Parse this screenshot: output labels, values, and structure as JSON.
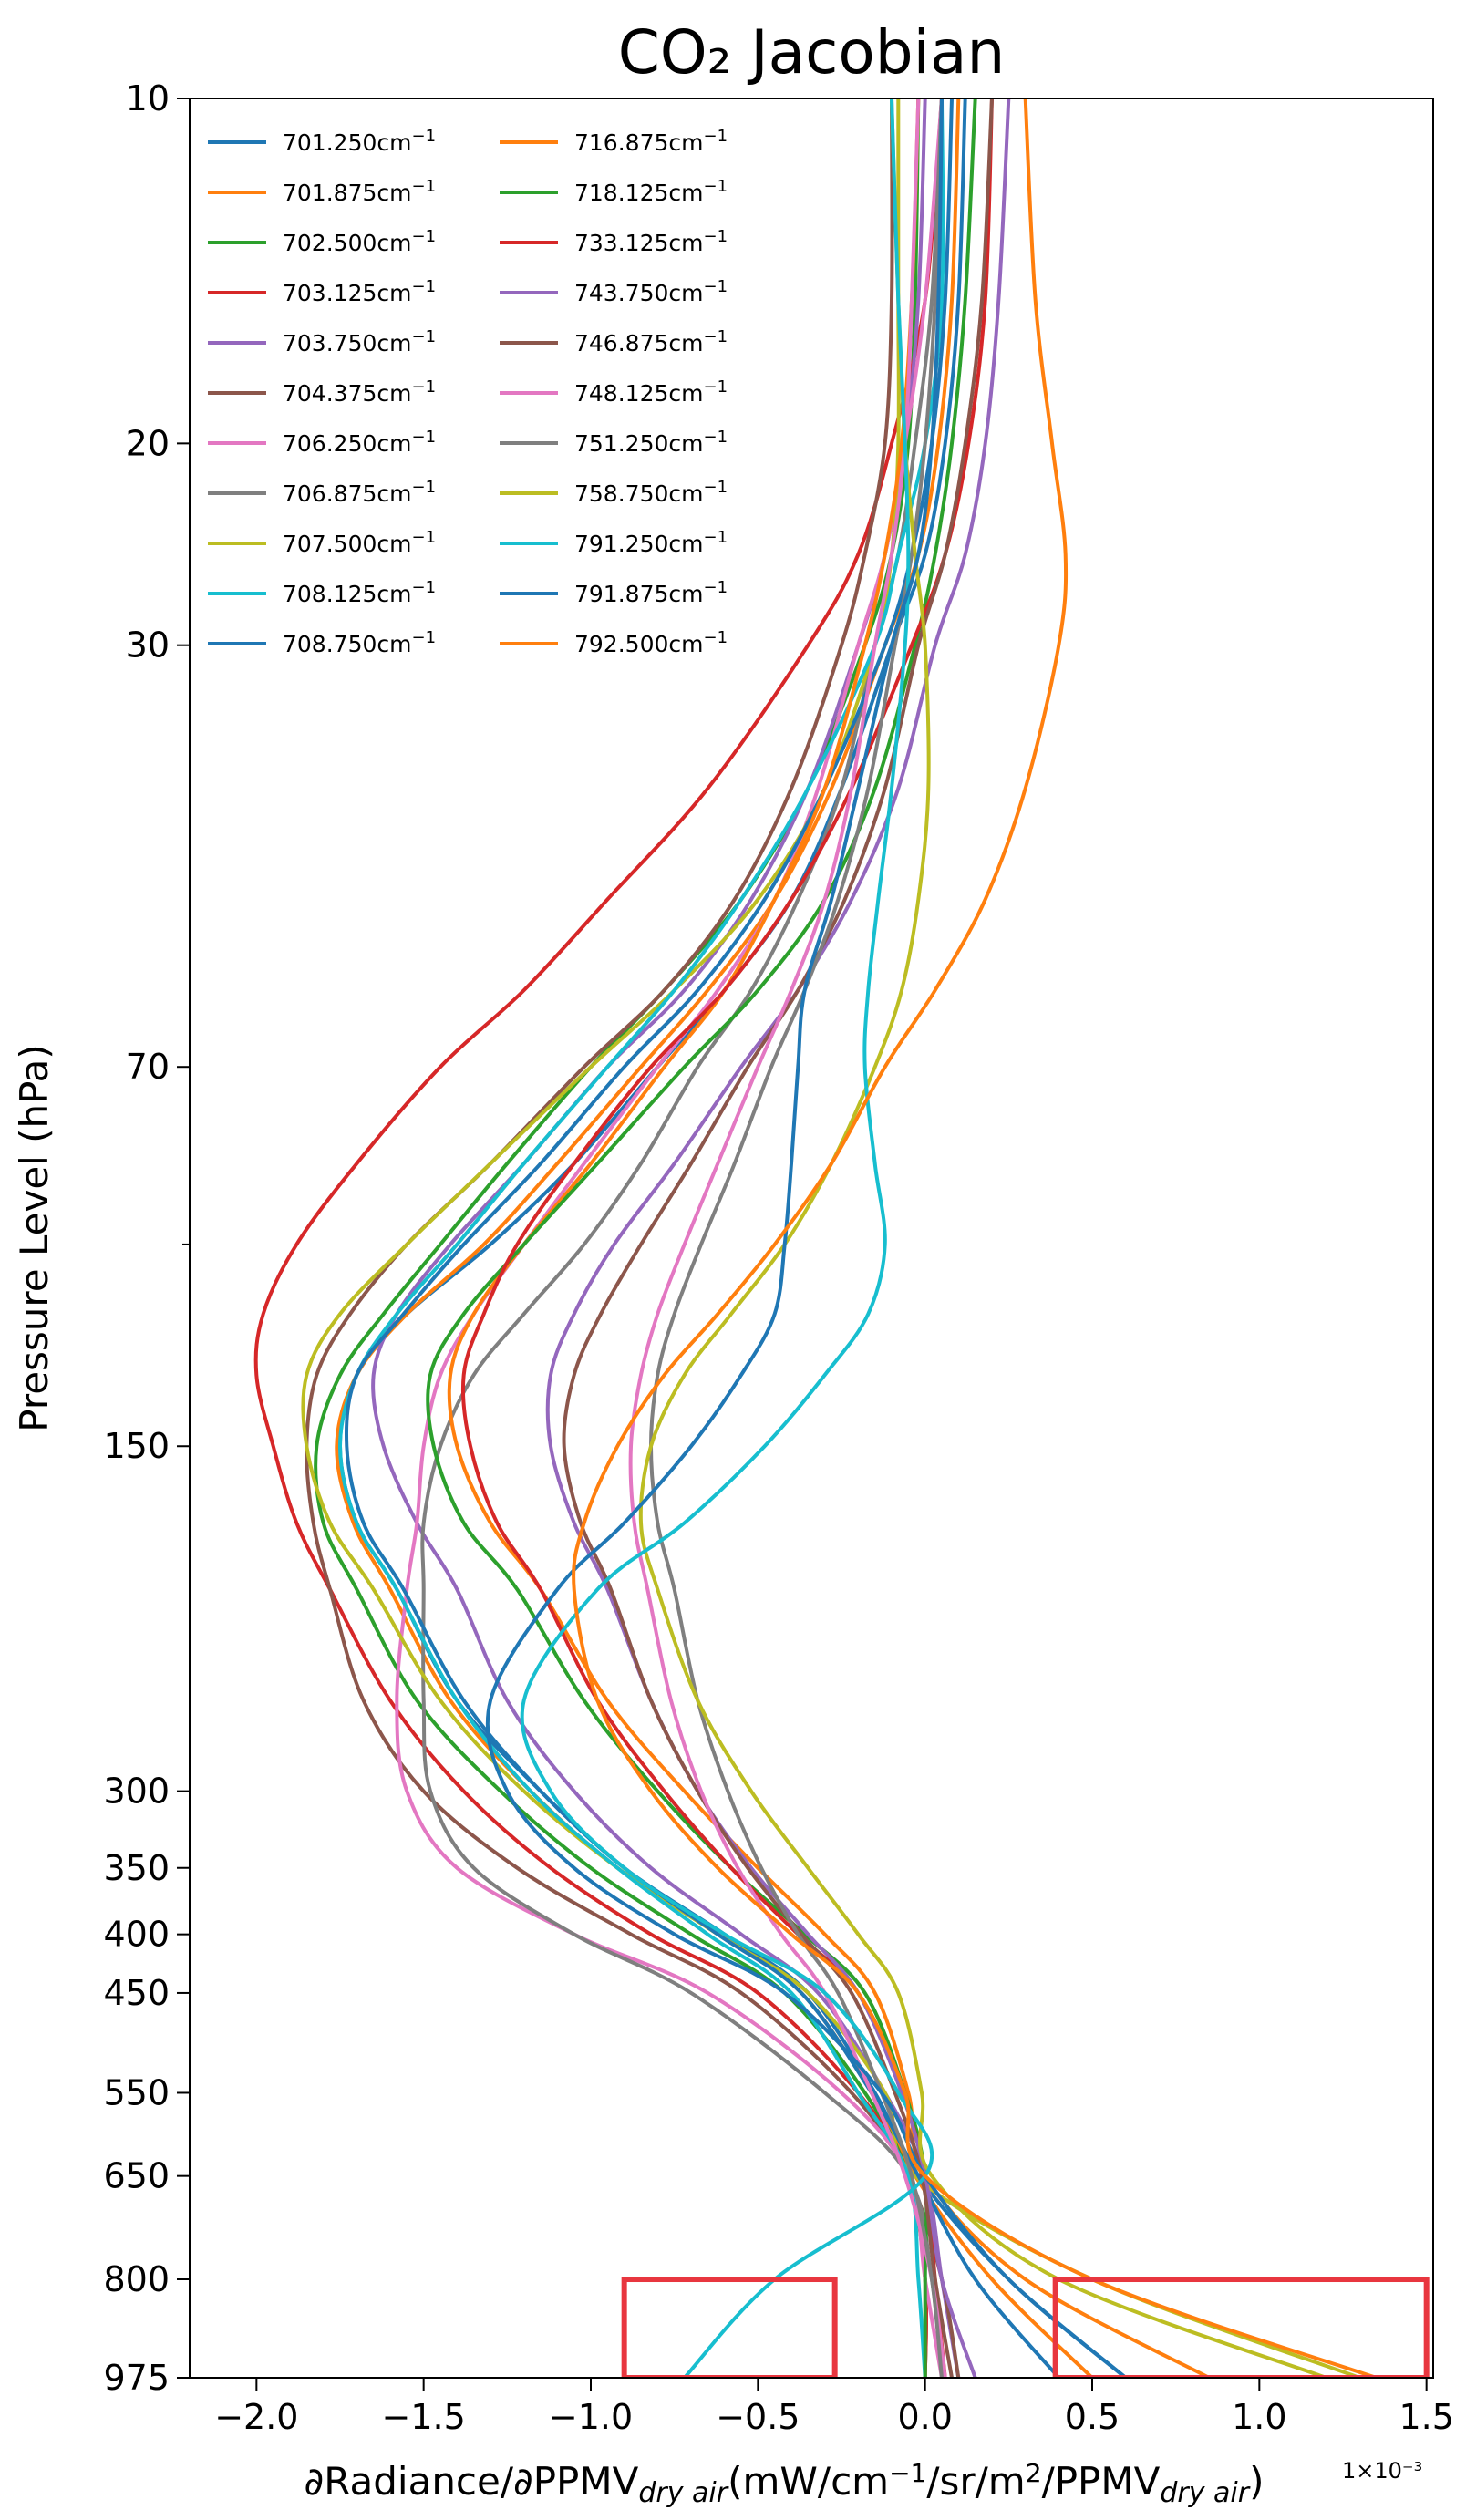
{
  "chart_data": {
    "type": "line",
    "title": "CO₂ Jacobian",
    "xlabel": "∂Radiance/∂PPMV_dry air (mW/cm⁻¹/sr/m²/PPMV_dry air)",
    "xlabel_parts": {
      "a": "∂Radiance/∂PPMV",
      "a_sub": "dry air",
      "b": "(mW/cm",
      "b_sup": "−1",
      "c": "/sr/m",
      "c_sup": "2",
      "d": "/PPMV",
      "d_sub": "dry air",
      "e": ")"
    },
    "x_scale_note": "1×10⁻³",
    "ylabel": "Pressure Level (hPa)",
    "xlim": [
      -2.2,
      1.52
    ],
    "ylim_hpa": [
      975,
      10
    ],
    "yscale": "log (inverted)",
    "x_ticks": [
      -2.0,
      -1.5,
      -1.0,
      -0.5,
      0.0,
      0.5,
      1.0,
      1.5
    ],
    "x_tick_labels": [
      "−2.0",
      "−1.5",
      "−1.0",
      "−0.5",
      "0.0",
      "0.5",
      "1.0",
      "1.5"
    ],
    "y_ticks": [
      10,
      20,
      30,
      70,
      150,
      300,
      350,
      400,
      450,
      550,
      650,
      800,
      975
    ],
    "y_tick_labels": [
      "10",
      "20",
      "30",
      "70",
      "150",
      "300",
      "350",
      "400",
      "450",
      "550",
      "650",
      "800",
      "975"
    ],
    "y_minor_ticks": [
      100
    ],
    "legend_position": "top-left, two columns",
    "pressure_levels": [
      10,
      15,
      20,
      25,
      30,
      40,
      50,
      60,
      70,
      85,
      100,
      115,
      130,
      150,
      175,
      200,
      250,
      300,
      350,
      400,
      450,
      550,
      650,
      800,
      975
    ],
    "series": [
      {
        "name": "701.250cm",
        "unit_sup": "−1",
        "color": "#1f77b4",
        "values": [
          0.12,
          0.1,
          0.06,
          0.0,
          -0.1,
          -0.25,
          -0.4,
          -0.6,
          -0.8,
          -1.05,
          -1.3,
          -1.55,
          -1.7,
          -1.75,
          -1.7,
          -1.58,
          -1.4,
          -1.15,
          -0.9,
          -0.6,
          -0.35,
          -0.15,
          -0.02,
          0.25,
          0.6
        ]
      },
      {
        "name": "701.875cm",
        "unit_sup": "−1",
        "color": "#ff7f0e",
        "values": [
          0.1,
          0.08,
          0.04,
          -0.02,
          -0.12,
          -0.28,
          -0.45,
          -0.65,
          -0.85,
          -1.1,
          -1.32,
          -1.55,
          -1.7,
          -1.76,
          -1.71,
          -1.6,
          -1.42,
          -1.18,
          -0.92,
          -0.62,
          -0.37,
          -0.16,
          -0.03,
          0.2,
          0.5
        ]
      },
      {
        "name": "702.500cm",
        "unit_sup": "−1",
        "color": "#2ca02c",
        "values": [
          -0.02,
          -0.03,
          -0.05,
          -0.1,
          -0.18,
          -0.35,
          -0.55,
          -0.78,
          -1.0,
          -1.25,
          -1.45,
          -1.62,
          -1.75,
          -1.82,
          -1.8,
          -1.7,
          -1.52,
          -1.27,
          -1.0,
          -0.7,
          -0.42,
          -0.18,
          -0.05,
          0.0,
          0.0
        ]
      },
      {
        "name": "703.125cm",
        "unit_sup": "−1",
        "color": "#d62728",
        "values": [
          0.05,
          0.0,
          -0.1,
          -0.2,
          -0.35,
          -0.65,
          -0.95,
          -1.2,
          -1.45,
          -1.7,
          -1.88,
          -1.98,
          -2.0,
          -1.95,
          -1.88,
          -1.78,
          -1.6,
          -1.38,
          -1.12,
          -0.82,
          -0.5,
          -0.2,
          -0.05,
          0.0,
          0.0
        ]
      },
      {
        "name": "703.750cm",
        "unit_sup": "−1",
        "color": "#9467bd",
        "values": [
          0.0,
          -0.02,
          -0.06,
          -0.12,
          -0.2,
          -0.35,
          -0.52,
          -0.72,
          -0.95,
          -1.2,
          -1.42,
          -1.58,
          -1.65,
          -1.62,
          -1.52,
          -1.4,
          -1.25,
          -1.05,
          -0.82,
          -0.55,
          -0.32,
          -0.12,
          0.0,
          0.05,
          0.1
        ]
      },
      {
        "name": "704.375cm",
        "unit_sup": "−1",
        "color": "#8c564b",
        "values": [
          -0.1,
          -0.1,
          -0.12,
          -0.18,
          -0.25,
          -0.4,
          -0.57,
          -0.78,
          -1.02,
          -1.3,
          -1.55,
          -1.72,
          -1.82,
          -1.85,
          -1.83,
          -1.78,
          -1.68,
          -1.5,
          -1.22,
          -0.88,
          -0.55,
          -0.22,
          -0.05,
          0.05,
          0.1
        ]
      },
      {
        "name": "706.250cm",
        "unit_sup": "−1",
        "color": "#e377c2",
        "values": [
          0.05,
          0.0,
          -0.06,
          -0.12,
          -0.2,
          -0.32,
          -0.45,
          -0.62,
          -0.8,
          -1.02,
          -1.2,
          -1.35,
          -1.45,
          -1.5,
          -1.52,
          -1.55,
          -1.58,
          -1.55,
          -1.4,
          -1.05,
          -0.65,
          -0.25,
          -0.05,
          0.0,
          0.05
        ]
      },
      {
        "name": "706.875cm",
        "unit_sup": "−1",
        "color": "#7f7f7f",
        "values": [
          0.05,
          0.02,
          -0.03,
          -0.08,
          -0.15,
          -0.25,
          -0.38,
          -0.52,
          -0.68,
          -0.85,
          -1.02,
          -1.2,
          -1.35,
          -1.45,
          -1.5,
          -1.5,
          -1.5,
          -1.48,
          -1.35,
          -1.05,
          -0.7,
          -0.3,
          -0.05,
          0.02,
          0.05
        ]
      },
      {
        "name": "707.500cm",
        "unit_sup": "−1",
        "color": "#bcbd22",
        "values": [
          -0.08,
          -0.08,
          -0.08,
          -0.1,
          -0.15,
          -0.3,
          -0.5,
          -0.75,
          -1.0,
          -1.3,
          -1.55,
          -1.75,
          -1.85,
          -1.85,
          -1.78,
          -1.65,
          -1.45,
          -1.2,
          -0.92,
          -0.62,
          -0.35,
          -0.12,
          -0.03,
          0.5,
          1.3
        ]
      },
      {
        "name": "708.125cm",
        "unit_sup": "−1",
        "color": "#17becf",
        "values": [
          0.05,
          0.05,
          0.0,
          -0.08,
          -0.15,
          -0.35,
          -0.55,
          -0.75,
          -0.95,
          -1.2,
          -1.4,
          -1.58,
          -1.7,
          -1.75,
          -1.7,
          -1.58,
          -1.4,
          -1.18,
          -0.92,
          -0.65,
          -0.4,
          -0.2,
          -0.05,
          -0.02,
          0.0
        ]
      },
      {
        "name": "708.750cm",
        "unit_sup": "−1",
        "color": "#1f77b4",
        "values": [
          0.08,
          0.06,
          0.02,
          -0.04,
          -0.12,
          -0.3,
          -0.48,
          -0.68,
          -0.9,
          -1.15,
          -1.38,
          -1.56,
          -1.7,
          -1.73,
          -1.68,
          -1.56,
          -1.38,
          -1.15,
          -0.9,
          -0.62,
          -0.37,
          -0.16,
          -0.02,
          0.15,
          0.4
        ]
      },
      {
        "name": "716.875cm",
        "unit_sup": "−1",
        "color": "#ff7f0e",
        "values": [
          -0.02,
          -0.04,
          -0.07,
          -0.12,
          -0.18,
          -0.3,
          -0.45,
          -0.6,
          -0.78,
          -1.0,
          -1.2,
          -1.35,
          -1.42,
          -1.4,
          -1.3,
          -1.15,
          -0.95,
          -0.72,
          -0.5,
          -0.3,
          -0.15,
          -0.05,
          0.0,
          0.3,
          0.85
        ]
      },
      {
        "name": "718.125cm",
        "unit_sup": "−1",
        "color": "#2ca02c",
        "values": [
          0.15,
          0.12,
          0.08,
          0.03,
          -0.03,
          -0.15,
          -0.3,
          -0.5,
          -0.72,
          -0.98,
          -1.2,
          -1.38,
          -1.48,
          -1.47,
          -1.38,
          -1.22,
          -1.02,
          -0.8,
          -0.58,
          -0.36,
          -0.18,
          -0.06,
          0.0,
          0.0,
          0.0
        ]
      },
      {
        "name": "733.125cm",
        "unit_sup": "−1",
        "color": "#d62728",
        "values": [
          0.2,
          0.18,
          0.13,
          0.06,
          -0.04,
          -0.22,
          -0.4,
          -0.6,
          -0.82,
          -1.05,
          -1.22,
          -1.32,
          -1.38,
          -1.36,
          -1.28,
          -1.15,
          -0.98,
          -0.78,
          -0.58,
          -0.38,
          -0.2,
          -0.07,
          0.0,
          0.03,
          0.06
        ]
      },
      {
        "name": "743.750cm",
        "unit_sup": "−1",
        "color": "#9467bd",
        "values": [
          0.25,
          0.22,
          0.18,
          0.12,
          0.03,
          -0.08,
          -0.22,
          -0.38,
          -0.55,
          -0.75,
          -0.93,
          -1.05,
          -1.12,
          -1.12,
          -1.05,
          -0.95,
          -0.82,
          -0.68,
          -0.52,
          -0.35,
          -0.2,
          -0.07,
          0.0,
          0.05,
          0.15
        ]
      },
      {
        "name": "746.875cm",
        "unit_sup": "−1",
        "color": "#8c564b",
        "values": [
          0.2,
          0.17,
          0.12,
          0.06,
          -0.02,
          -0.12,
          -0.24,
          -0.38,
          -0.53,
          -0.7,
          -0.85,
          -0.97,
          -1.05,
          -1.08,
          -1.03,
          -0.94,
          -0.82,
          -0.68,
          -0.53,
          -0.37,
          -0.22,
          -0.09,
          -0.01,
          0.03,
          0.08
        ]
      },
      {
        "name": "748.125cm",
        "unit_sup": "−1",
        "color": "#e377c2",
        "values": [
          -0.02,
          -0.04,
          -0.06,
          -0.1,
          -0.15,
          -0.22,
          -0.3,
          -0.4,
          -0.5,
          -0.62,
          -0.72,
          -0.8,
          -0.85,
          -0.88,
          -0.87,
          -0.83,
          -0.76,
          -0.67,
          -0.56,
          -0.43,
          -0.3,
          -0.16,
          -0.06,
          0.02,
          0.06
        ]
      },
      {
        "name": "751.250cm",
        "unit_sup": "−1",
        "color": "#7f7f7f",
        "values": [
          0.05,
          0.03,
          0.0,
          -0.04,
          -0.09,
          -0.17,
          -0.26,
          -0.36,
          -0.46,
          -0.57,
          -0.67,
          -0.75,
          -0.8,
          -0.82,
          -0.8,
          -0.75,
          -0.68,
          -0.59,
          -0.49,
          -0.38,
          -0.26,
          -0.13,
          -0.04,
          0.02,
          0.05
        ]
      },
      {
        "name": "758.750cm",
        "unit_sup": "−1",
        "color": "#bcbd22",
        "values": [
          -0.1,
          -0.08,
          -0.06,
          -0.03,
          0.0,
          0.01,
          -0.02,
          -0.07,
          -0.15,
          -0.28,
          -0.42,
          -0.58,
          -0.72,
          -0.82,
          -0.85,
          -0.8,
          -0.68,
          -0.52,
          -0.35,
          -0.2,
          -0.08,
          -0.01,
          0.02,
          0.4,
          1.2
        ]
      },
      {
        "name": "791.250cm",
        "unit_sup": "−1",
        "color": "#17becf",
        "values": [
          -0.1,
          -0.08,
          -0.06,
          -0.05,
          -0.06,
          -0.1,
          -0.14,
          -0.17,
          -0.18,
          -0.15,
          -0.12,
          -0.17,
          -0.3,
          -0.48,
          -0.72,
          -0.98,
          -1.2,
          -1.12,
          -0.9,
          -0.6,
          -0.3,
          -0.08,
          0.0,
          -0.45,
          -0.72
        ]
      },
      {
        "name": "791.875cm",
        "unit_sup": "−1",
        "color": "#1f77b4",
        "values": [
          0.05,
          0.04,
          0.02,
          -0.02,
          -0.1,
          -0.2,
          -0.28,
          -0.36,
          -0.38,
          -0.4,
          -0.42,
          -0.45,
          -0.55,
          -0.7,
          -0.9,
          -1.1,
          -1.3,
          -1.25,
          -1.05,
          -0.75,
          -0.42,
          -0.13,
          0.0,
          0.25,
          0.6
        ]
      },
      {
        "name": "792.500cm",
        "unit_sup": "−1",
        "color": "#ff7f0e",
        "values": [
          0.3,
          0.33,
          0.38,
          0.42,
          0.4,
          0.3,
          0.18,
          0.03,
          -0.12,
          -0.28,
          -0.45,
          -0.62,
          -0.78,
          -0.92,
          -1.02,
          -1.05,
          -0.98,
          -0.82,
          -0.62,
          -0.4,
          -0.2,
          -0.06,
          0.0,
          0.5,
          1.35
        ]
      }
    ],
    "highlight_boxes": [
      {
        "x_range": [
          -0.9,
          -0.27
        ],
        "p_range": [
          800,
          975
        ]
      },
      {
        "x_range": [
          0.39,
          1.5
        ],
        "p_range": [
          800,
          975
        ]
      }
    ],
    "highlight_color": "#e8363f"
  }
}
